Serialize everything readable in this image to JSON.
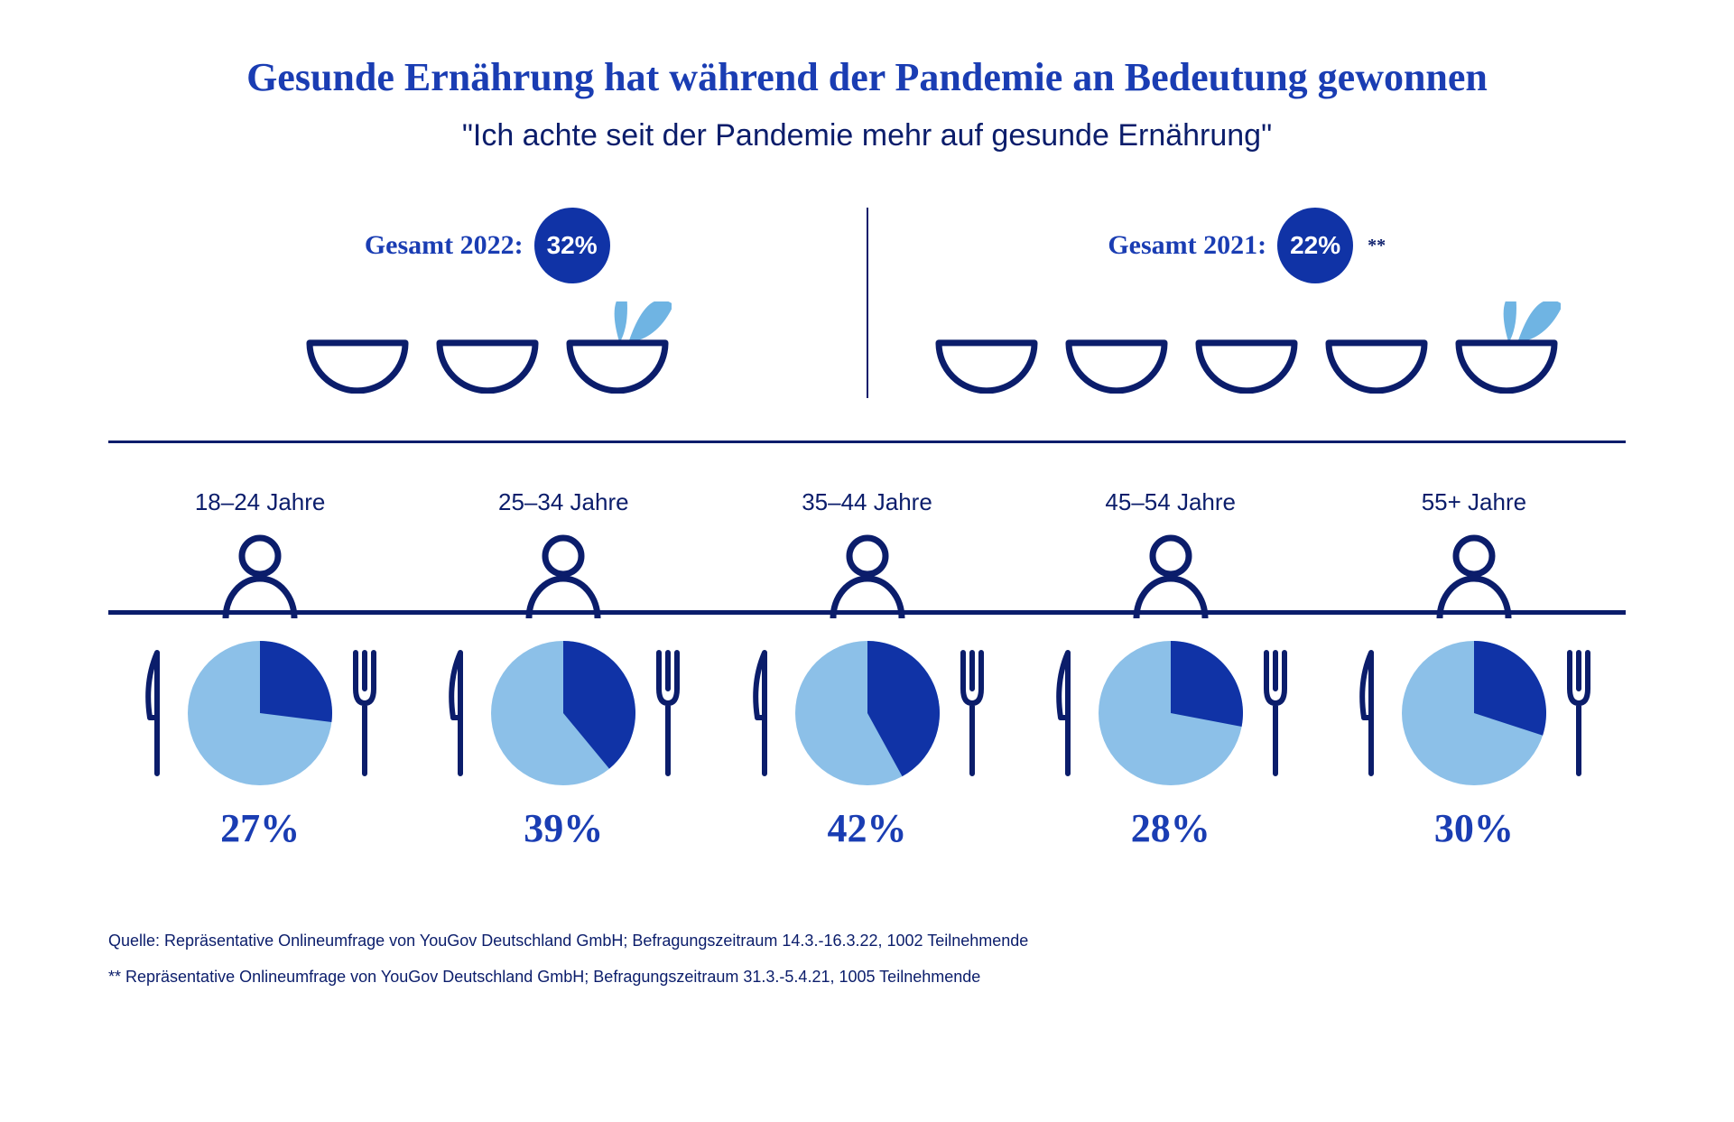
{
  "colors": {
    "title_blue": "#1a3db3",
    "dark_navy": "#0b1d6b",
    "badge_blue": "#1033a6",
    "light_blue": "#8cc0e8",
    "leaf_blue": "#6fb4e3",
    "background": "#ffffff",
    "footnote": "#0b1d6b"
  },
  "title": "Gesunde Ernährung hat während der Pandemie an Bedeutung gewonnen",
  "subtitle": "\"Ich achte seit der Pandemie mehr auf gesunde Ernährung\"",
  "totals": [
    {
      "label": "Gesamt 2022:",
      "value": "32%",
      "bowls": 3,
      "footnote": ""
    },
    {
      "label": "Gesamt 2021:",
      "value": "22%",
      "bowls": 5,
      "footnote": "**"
    }
  ],
  "age_groups": [
    {
      "label": "18–24 Jahre",
      "percent": 27,
      "display": "27%"
    },
    {
      "label": "25–34 Jahre",
      "percent": 39,
      "display": "39%"
    },
    {
      "label": "35–44 Jahre",
      "percent": 42,
      "display": "42%"
    },
    {
      "label": "45–54 Jahre",
      "percent": 28,
      "display": "28%"
    },
    {
      "label": "55+ Jahre",
      "percent": 30,
      "display": "30%"
    }
  ],
  "pie": {
    "radius": 80,
    "fill_light": "#8cc0e8",
    "fill_dark": "#1033a6"
  },
  "bowl": {
    "width": 120,
    "stroke": "#0b1d6b",
    "stroke_width": 7,
    "leaf_fill": "#6fb4e3"
  },
  "person": {
    "stroke": "#0b1d6b",
    "stroke_width": 7
  },
  "utensil": {
    "stroke": "#0b1d6b",
    "stroke_width": 6
  },
  "footnotes": [
    "Quelle: Repräsentative Onlineumfrage von YouGov Deutschland GmbH; Befragungszeitraum 14.3.-16.3.22, 1002 Teilnehmende",
    "** Repräsentative Onlineumfrage von YouGov Deutschland GmbH; Befragungszeitraum 31.3.-5.4.21, 1005 Teilnehmende"
  ]
}
